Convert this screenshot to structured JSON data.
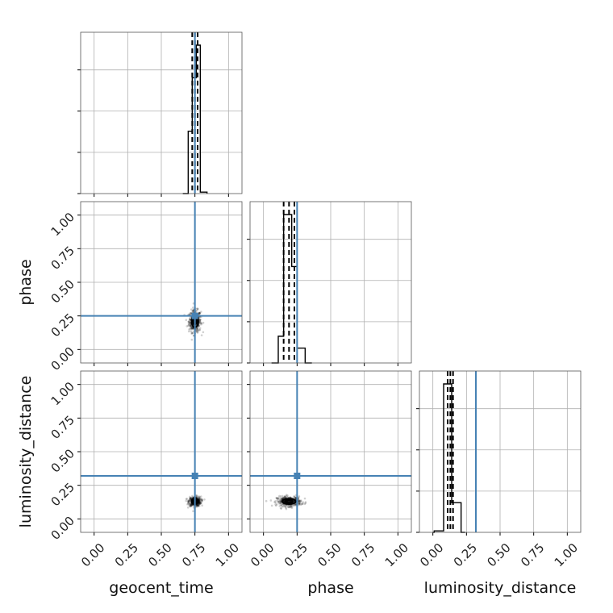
{
  "chart_data": {
    "type": "corner",
    "parameters": [
      "geocent_time",
      "phase",
      "luminosity_distance"
    ],
    "labels": {
      "x": [
        "geocent_time",
        "phase",
        "luminosity_distance"
      ],
      "y_rows": [
        "",
        "phase",
        "luminosity_distance"
      ]
    },
    "ticks": [
      0.0,
      0.25,
      0.5,
      0.75,
      1.0
    ],
    "tick_labels": [
      "0.00",
      "0.25",
      "0.50",
      "0.75",
      "1.00"
    ],
    "axis_range": [
      -0.1,
      1.1
    ],
    "grid": true,
    "truth_color": "#4682b4",
    "truths": {
      "geocent_time": 0.75,
      "phase": 0.25,
      "luminosity_distance": 0.32
    },
    "marginals": [
      {
        "parameter": "geocent_time",
        "bins": [
          [
            0.66,
            0.0
          ],
          [
            0.68,
            0.0
          ],
          [
            0.7,
            0.42
          ],
          [
            0.73,
            0.78
          ],
          [
            0.76,
            1.0
          ],
          [
            0.79,
            0.01
          ],
          [
            0.84,
            0.0
          ]
        ],
        "quantiles": [
          0.73,
          0.75,
          0.77
        ]
      },
      {
        "parameter": "phase",
        "bins": [
          [
            0.06,
            0.0
          ],
          [
            0.08,
            0.0
          ],
          [
            0.11,
            0.18
          ],
          [
            0.15,
            1.0
          ],
          [
            0.21,
            0.65
          ],
          [
            0.25,
            0.1
          ],
          [
            0.31,
            0.0
          ],
          [
            0.36,
            0.0
          ]
        ],
        "quantiles": [
          0.15,
          0.19,
          0.23
        ]
      },
      {
        "parameter": "luminosity_distance",
        "bins": [
          [
            0.0,
            0.0
          ],
          [
            0.01,
            0.01
          ],
          [
            0.08,
            1.0
          ],
          [
            0.14,
            0.2
          ],
          [
            0.21,
            0.0
          ],
          [
            0.24,
            0.0
          ]
        ],
        "quantiles": [
          0.11,
          0.13,
          0.15
        ]
      }
    ],
    "joint": [
      {
        "x": "geocent_time",
        "y": "phase",
        "center": [
          0.75,
          0.21
        ],
        "spread": [
          0.025,
          0.045
        ]
      },
      {
        "x": "geocent_time",
        "y": "luminosity_distance",
        "center": [
          0.75,
          0.13
        ],
        "spread": [
          0.025,
          0.02
        ]
      },
      {
        "x": "phase",
        "y": "luminosity_distance",
        "center": [
          0.19,
          0.13
        ],
        "spread": [
          0.05,
          0.02
        ]
      }
    ]
  }
}
